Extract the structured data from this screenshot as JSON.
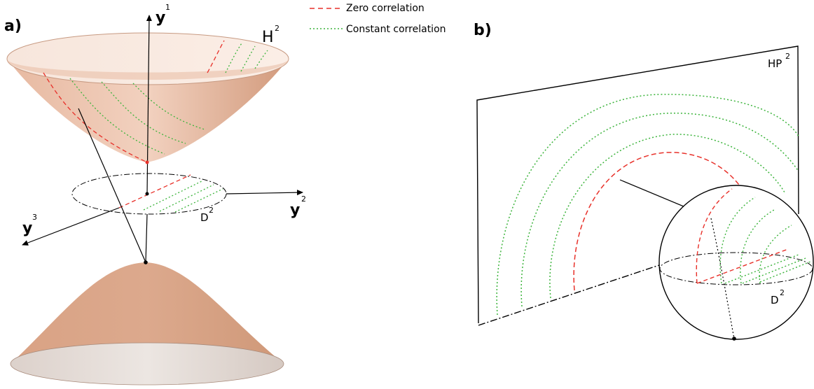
{
  "legend": {
    "zero": "Zero correlation",
    "constant": "Constant correlation"
  },
  "colors": {
    "zero": "#e8312a",
    "constant": "#3cb43c",
    "surface": "#dba588",
    "surface_light": "#f5ddd0",
    "base": "#d9cfc9"
  },
  "panel_a": {
    "label": "a)",
    "axis_y1": "y",
    "axis_y1_sup": "1",
    "axis_y2": "y",
    "axis_y2_sup": "2",
    "axis_y3": "y",
    "axis_y3_sup": "3",
    "surface_label": "H",
    "surface_sup": "2",
    "disk_label": "D",
    "disk_sup": "2"
  },
  "panel_b": {
    "label": "b)",
    "plane_label": "HP",
    "plane_sup": "2",
    "disk_label": "D",
    "disk_sup": "2"
  }
}
